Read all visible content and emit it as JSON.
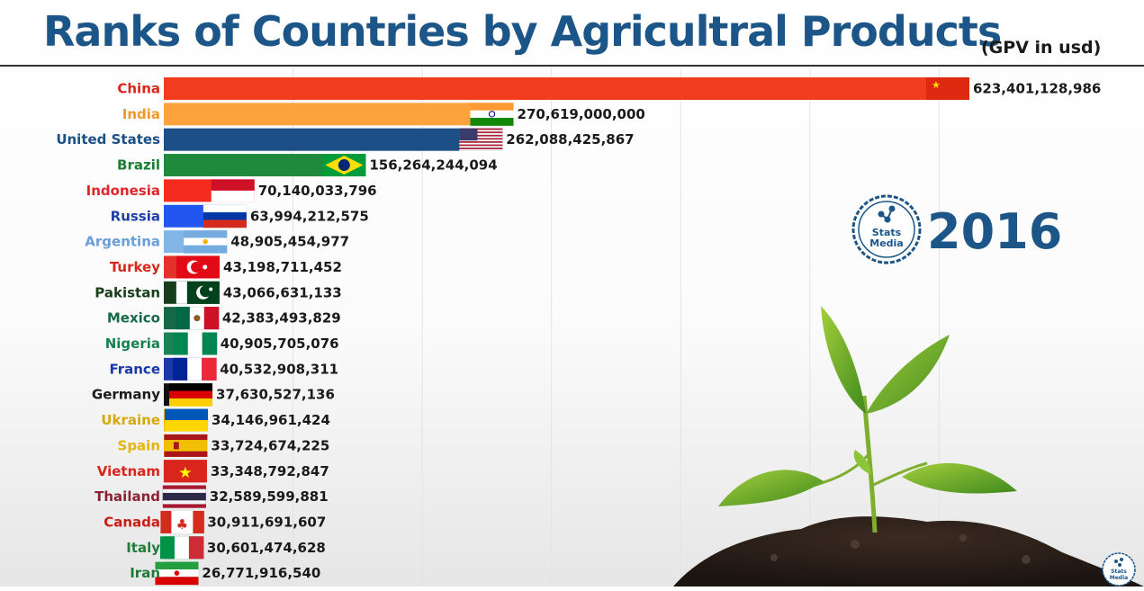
{
  "title": "Ranks of Countries by Agricultral Products",
  "subtitle": "(GPV in usd)",
  "year": "2016",
  "logo": {
    "line1": "Stats",
    "line2": "Media"
  },
  "chart_data": {
    "type": "bar",
    "orientation": "horizontal",
    "title": "Ranks of Countries by Agricultral Products",
    "subtitle": "(GPV in usd)",
    "period": "2016",
    "grid": true,
    "xlim": [
      0,
      623401128986
    ],
    "series": [
      {
        "category": "China",
        "value": 623401128986,
        "label": "623,401,128,986",
        "color": "#f23c1e",
        "label_color": "#d7261b",
        "flag": "china-flag"
      },
      {
        "category": "India",
        "value": 270619000000,
        "label": "270,619,000,000",
        "color": "#fca33d",
        "label_color": "#f0982b",
        "flag": "india-flag"
      },
      {
        "category": "United States",
        "value": 262088425867,
        "label": "262,088,425,867",
        "color": "#1c4f86",
        "label_color": "#1c4f86",
        "flag": "usa-flag"
      },
      {
        "category": "Brazil",
        "value": 156264244094,
        "label": "156,264,244,094",
        "color": "#1f8a3c",
        "label_color": "#1a7e33",
        "flag": "brazil-flag"
      },
      {
        "category": "Indonesia",
        "value": 70140033796,
        "label": "70,140,033,796",
        "color": "#f52b1f",
        "label_color": "#e0262a",
        "flag": "indonesia-flag"
      },
      {
        "category": "Russia",
        "value": 63994212575,
        "label": "63,994,212,575",
        "color": "#2157f0",
        "label_color": "#1d3fa8",
        "flag": "russia-flag"
      },
      {
        "category": "Argentina",
        "value": 48905454977,
        "label": "48,905,454,977",
        "color": "#82b6e6",
        "label_color": "#6a9ed6",
        "flag": "argentina-flag"
      },
      {
        "category": "Turkey",
        "value": 43198711452,
        "label": "43,198,711,452",
        "color": "#e3322b",
        "label_color": "#d7261b",
        "flag": "turkey-flag"
      },
      {
        "category": "Pakistan",
        "value": 43066631133,
        "label": "43,066,631,133",
        "color": "#173d1d",
        "label_color": "#163f1a",
        "flag": "pakistan-flag"
      },
      {
        "category": "Mexico",
        "value": 42383493829,
        "label": "42,383,493,829",
        "color": "#166848",
        "label_color": "#166848",
        "flag": "mexico-flag"
      },
      {
        "category": "Nigeria",
        "value": 40905705076,
        "label": "40,905,705,076",
        "color": "#1b8354",
        "label_color": "#168050",
        "flag": "nigeria-flag"
      },
      {
        "category": "France",
        "value": 40532908311,
        "label": "40,532,908,311",
        "color": "#1a38a8",
        "label_color": "#1a38a8",
        "flag": "france-flag"
      },
      {
        "category": "Germany",
        "value": 37630527136,
        "label": "37,630,527,136",
        "color": "#111111",
        "label_color": "#1a1a1a",
        "flag": "germany-flag"
      },
      {
        "category": "Ukraine",
        "value": 34146961424,
        "label": "34,146,961,424",
        "color": "#e5b417",
        "label_color": "#d5a80e",
        "flag": "ukraine-flag"
      },
      {
        "category": "Spain",
        "value": 33724674225,
        "label": "33,724,674,225",
        "color": "#ecbe12",
        "label_color": "#e5b40c",
        "flag": "spain-flag"
      },
      {
        "category": "Vietnam",
        "value": 33348792847,
        "label": "33,348,792,847",
        "color": "#d93a24",
        "label_color": "#d7261b",
        "flag": "vietnam-flag"
      },
      {
        "category": "Thailand",
        "value": 32589599881,
        "label": "32,589,599,881",
        "color": "#8b2233",
        "label_color": "#8b2233",
        "flag": "thailand-flag"
      },
      {
        "category": "Canada",
        "value": 30911691607,
        "label": "30,911,691,607",
        "color": "#d92414",
        "label_color": "#c81d14",
        "flag": "canada-flag"
      },
      {
        "category": "Italy",
        "value": 30601474628,
        "label": "30,601,474,628",
        "color": "#21873b",
        "label_color": "#1f7e37",
        "flag": "italy-flag"
      },
      {
        "category": "Iran",
        "value": 26771916540,
        "label": "26,771,916,540",
        "color": "#1f843a",
        "label_color": "#1c7a35",
        "flag": "iran-flag"
      }
    ]
  }
}
